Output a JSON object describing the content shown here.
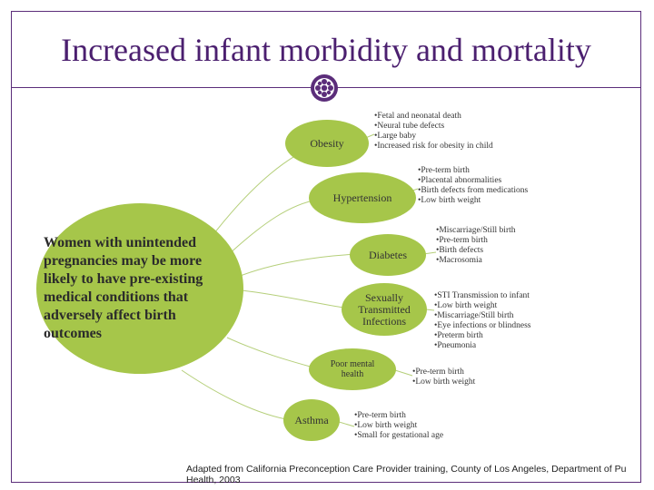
{
  "title": "Increased infant morbidity and mortality",
  "emblem_icon": "flower-emblem-icon",
  "colors": {
    "title": "#4b1f6f",
    "border": "#5b2d7a",
    "oval_fill": "#a6c64a",
    "emblem": "#5b2d7a"
  },
  "main_oval": {
    "label": "Women with unintended pregnancies may be more likely to have pre-existing medical conditions that adversely affect birth outcomes"
  },
  "conditions": [
    {
      "label": "Obesity",
      "effects": [
        "Fetal and neonatal death",
        "Neural tube defects",
        "Large baby",
        "Increased risk for obesity in child"
      ]
    },
    {
      "label": "Hypertension",
      "effects": [
        "Pre-term birth",
        "Placental abnormalities",
        "Birth defects from medications",
        "Low birth weight"
      ]
    },
    {
      "label": "Diabetes",
      "effects": [
        "Miscarriage/Still birth",
        "Pre-term birth",
        "Birth defects",
        "Macrosomia"
      ]
    },
    {
      "label": "Sexually Transmitted Infections",
      "effects": [
        "STI Transmission to infant",
        "Low birth weight",
        "Miscarriage/Still birth",
        "Eye infections or blindness",
        "Preterm birth",
        "Pneumonia"
      ]
    },
    {
      "label": "Poor mental health",
      "effects": [
        "Pre-term birth",
        "Low birth weight"
      ]
    },
    {
      "label": "Asthma",
      "effects": [
        "Pre-term birth",
        "Low birth weight",
        "Small for gestational age"
      ]
    }
  ],
  "footer": {
    "line1": "Adapted from California Preconception Care Provider training, County of Los Angeles, Department of Pu",
    "line2": "Health, 2003"
  }
}
